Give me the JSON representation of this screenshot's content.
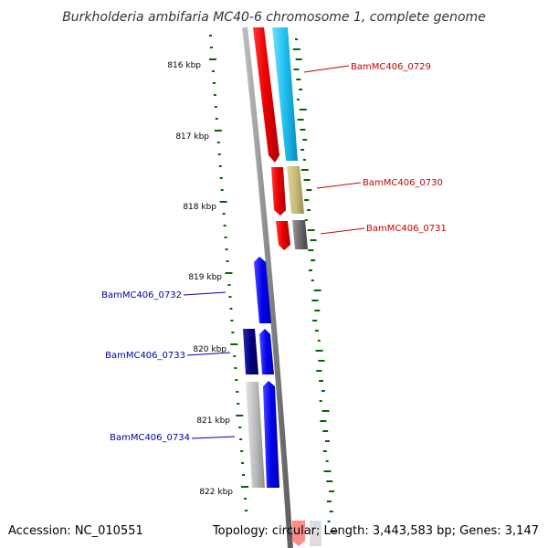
{
  "title": "Burkholderia ambifaria MC40-6 chromosome 1, complete genome",
  "scale_labels": [
    "816 kbp",
    "817 kbp",
    "818 kbp",
    "819 kbp",
    "820 kbp",
    "821 kbp",
    "822 kbp"
  ],
  "genes": [
    {
      "label": "BamMC406_0729",
      "strand": "forward",
      "color": "#cc0000",
      "kind": "feature-icon-red-cyan"
    },
    {
      "label": "BamMC406_0730",
      "strand": "forward",
      "color": "#cc0000",
      "kind": "feature-icon-red-khaki"
    },
    {
      "label": "BamMC406_0731",
      "strand": "forward",
      "color": "#cc0000",
      "kind": "feature-icon-red-gray"
    },
    {
      "label": "BamMC406_0732",
      "strand": "reverse",
      "color": "#0000aa",
      "kind": "feature-icon-blue"
    },
    {
      "label": "BamMC406_0733",
      "strand": "reverse",
      "color": "#0000aa",
      "kind": "feature-icon-navy-blue"
    },
    {
      "label": "BamMC406_0734",
      "strand": "reverse",
      "color": "#0000aa",
      "kind": "feature-icon-silver-blue"
    }
  ],
  "colors": {
    "forward_cds": "#ff0000",
    "reverse_cds": "#0000ff",
    "backbone": "#888888",
    "gc_ticks": "#006600",
    "cyan_feature": "#22c4ee",
    "khaki_feature": "#c8bc7a",
    "gray_feature": "#666666",
    "navy_feature": "#000080",
    "silver_feature": "#bbbbbb"
  },
  "footer": {
    "accession": "Accession: NC_010551",
    "topology": "Topology: circular; Length: 3,443,583 bp; Genes: 3,147"
  }
}
